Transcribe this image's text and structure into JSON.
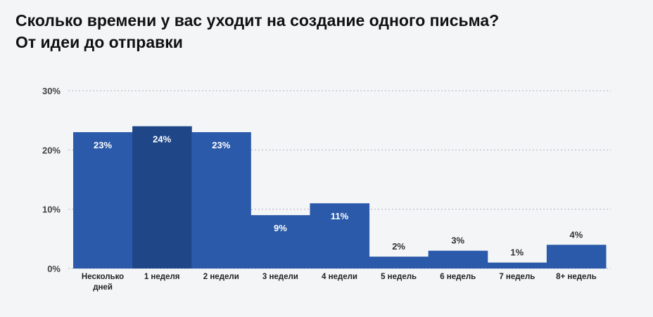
{
  "chart_data": {
    "type": "bar",
    "title_line1": "Сколько времени у вас уходит на создание одного письма?",
    "title_line2": "От идеи до отправки",
    "categories": [
      [
        "Несколько",
        "дней"
      ],
      [
        "1 неделя"
      ],
      [
        "2 недели"
      ],
      [
        "3 недели"
      ],
      [
        "4 недели"
      ],
      [
        "5 недель"
      ],
      [
        "6 недель"
      ],
      [
        "7 недель"
      ],
      [
        "8+ недель"
      ]
    ],
    "values": [
      23,
      24,
      23,
      9,
      11,
      2,
      3,
      1,
      4
    ],
    "value_labels": [
      "23%",
      "24%",
      "23%",
      "9%",
      "11%",
      "2%",
      "3%",
      "1%",
      "4%"
    ],
    "highlight_index": 1,
    "yticks": [
      0,
      10,
      20,
      30
    ],
    "ytick_labels": [
      "0%",
      "10%",
      "20%",
      "30%"
    ],
    "ylim": [
      0,
      30
    ],
    "grid": true,
    "colors": {
      "bar": "#2a5aa9",
      "bar_highlight": "#1f4788",
      "label_inside": "#ffffff",
      "label_outside": "#333333",
      "grid": "#b0b4bb"
    }
  }
}
